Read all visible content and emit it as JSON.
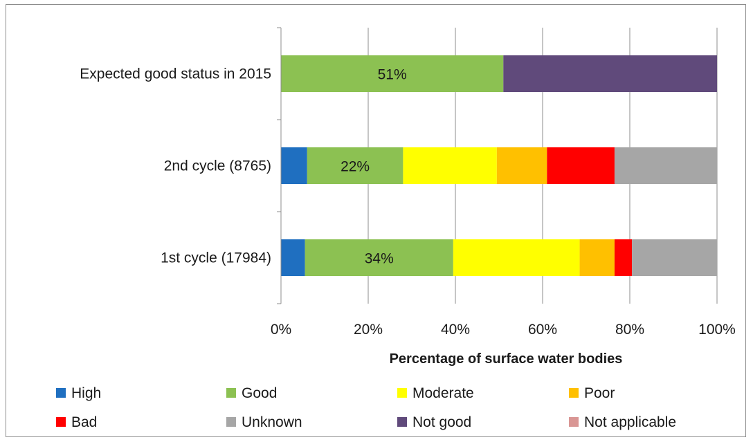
{
  "chart_data": {
    "type": "bar",
    "orientation": "horizontal",
    "stacked": true,
    "title": "",
    "xlabel": "Percentage of surface water bodies",
    "ylabel": "",
    "xlim": [
      0,
      100
    ],
    "x_ticks": [
      "0%",
      "20%",
      "40%",
      "60%",
      "80%",
      "100%"
    ],
    "x_tick_values": [
      0,
      20,
      40,
      60,
      80,
      100
    ],
    "grid": true,
    "legend_position": "bottom",
    "categories": [
      "Expected good status in 2015",
      "2nd cycle (8765)",
      "1st cycle (17984)"
    ],
    "series": [
      {
        "name": "High",
        "color": "#1f6fc0",
        "values": [
          0,
          6,
          5.5
        ]
      },
      {
        "name": "Good",
        "color": "#8cc152",
        "values": [
          51,
          22,
          34
        ]
      },
      {
        "name": "Moderate",
        "color": "#ffff00",
        "values": [
          0,
          21.5,
          29
        ]
      },
      {
        "name": "Poor",
        "color": "#ffc000",
        "values": [
          0,
          11.5,
          8
        ]
      },
      {
        "name": "Bad",
        "color": "#ff0000",
        "values": [
          0,
          15.5,
          4
        ]
      },
      {
        "name": "Unknown",
        "color": "#a6a6a6",
        "values": [
          0,
          23.5,
          19.5
        ]
      },
      {
        "name": "Not good",
        "color": "#604a7b",
        "values": [
          49,
          0,
          0
        ]
      },
      {
        "name": "Not applicable",
        "color": "#d99694",
        "values": [
          0,
          0,
          0
        ]
      }
    ],
    "data_labels": [
      {
        "category_index": 0,
        "series": "Good",
        "text": "51%"
      },
      {
        "category_index": 1,
        "series": "Good",
        "text": "22%"
      },
      {
        "category_index": 2,
        "series": "Good",
        "text": "34%"
      }
    ]
  }
}
